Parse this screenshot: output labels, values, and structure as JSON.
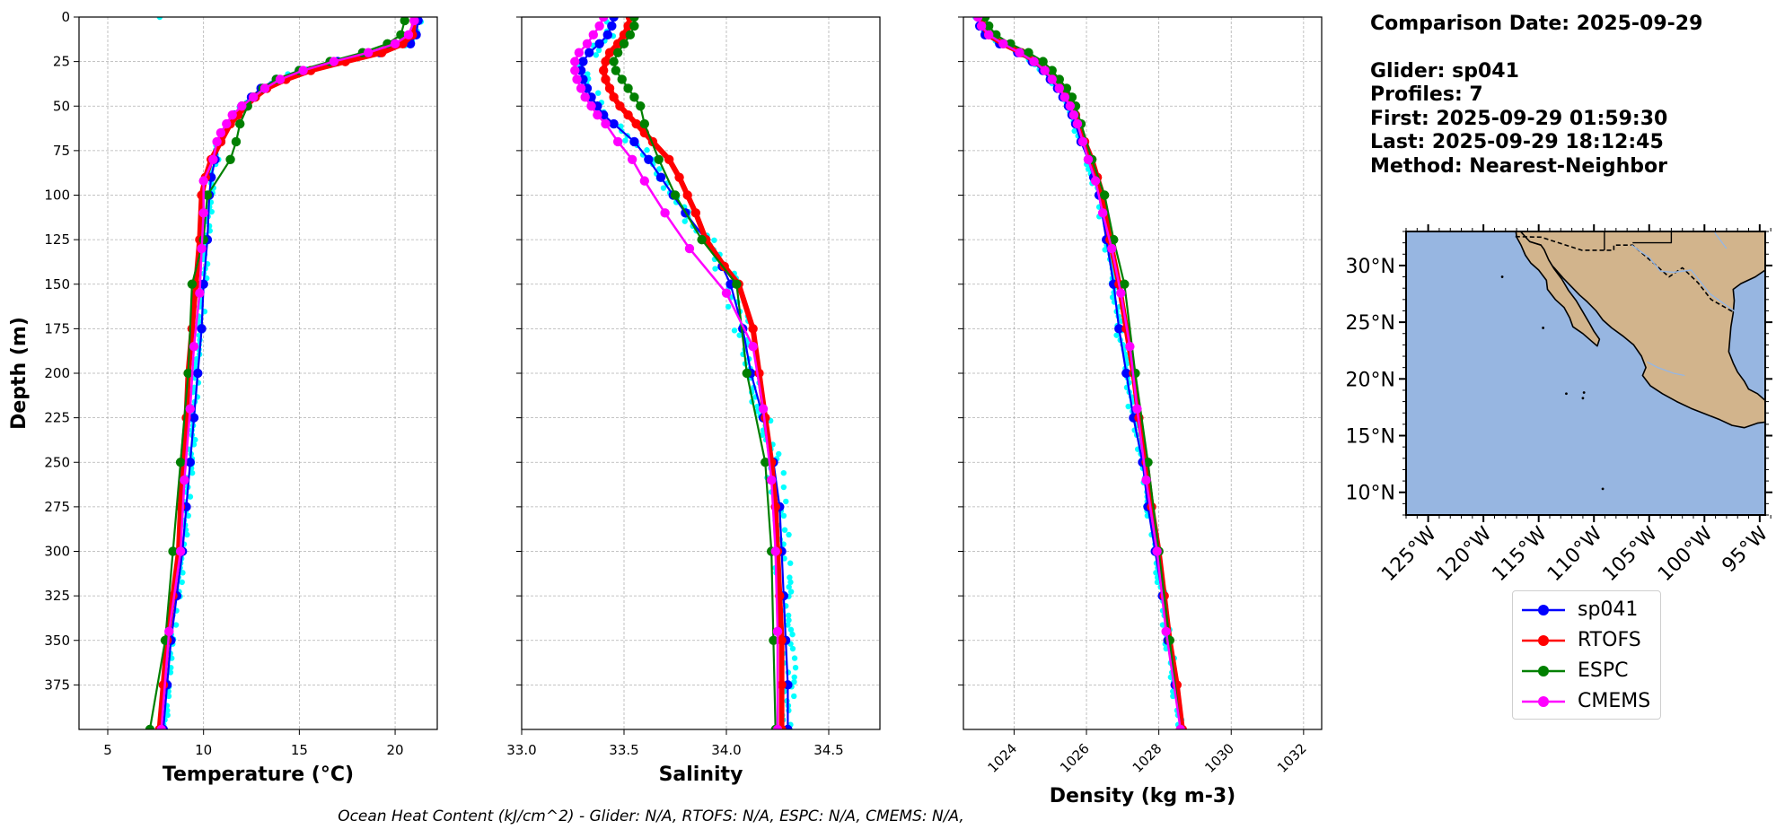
{
  "info": {
    "comparison_date": "Comparison Date: 2025-09-29",
    "glider": "Glider: sp041",
    "profiles": "Profiles: 7",
    "first": "First: 2025-09-29 01:59:30",
    "last": "Last: 2025-09-29 18:12:45",
    "method": "Method: Nearest-Neighbor"
  },
  "footer": "Ocean Heat Content (kJ/cm^2) - Glider: N/A,  RTOFS: N/A,  ESPC: N/A,  CMEMS: N/A,",
  "colors": {
    "sp041": "#0000ff",
    "RTOFS": "#ff0000",
    "ESPC": "#008000",
    "CMEMS": "#ff00ff",
    "sp041_scatter": "#00ffff",
    "land": "#d2b48c",
    "ocean": "#97b6e1",
    "grid": "#b0b0b0"
  },
  "legend": [
    {
      "name": "sp041",
      "color": "#0000ff"
    },
    {
      "name": "RTOFS",
      "color": "#ff0000"
    },
    {
      "name": "ESPC",
      "color": "#008000"
    },
    {
      "name": "CMEMS",
      "color": "#ff00ff"
    }
  ],
  "chart_data": [
    {
      "type": "line",
      "xlabel": "Temperature (°C)",
      "ylabel": "Depth (m)",
      "xlim": [
        3.5,
        22.2
      ],
      "ylim": [
        400,
        0
      ],
      "y_inverted": true,
      "xticks": [
        "5",
        "10",
        "15",
        "20"
      ],
      "xtick_values": [
        5,
        10,
        15,
        20
      ],
      "yticks": [
        "0",
        "25",
        "50",
        "75",
        "100",
        "125",
        "150",
        "175",
        "200",
        "225",
        "250",
        "275",
        "300",
        "325",
        "350",
        "375"
      ],
      "ytick_values": [
        0,
        25,
        50,
        75,
        100,
        125,
        150,
        175,
        200,
        225,
        250,
        275,
        300,
        325,
        350,
        375
      ],
      "grid": true,
      "series": [
        {
          "name": "sp041",
          "depth": [
            2,
            10,
            15,
            20,
            25,
            30,
            35,
            40,
            45,
            50,
            55,
            60,
            70,
            80,
            90,
            100,
            125,
            150,
            175,
            200,
            225,
            250,
            275,
            300,
            325,
            350,
            375,
            400
          ],
          "values": [
            21.2,
            21.1,
            20.8,
            19.2,
            17.0,
            15.0,
            13.8,
            13.0,
            12.5,
            12.0,
            11.6,
            11.3,
            10.9,
            10.6,
            10.4,
            10.3,
            10.2,
            10.0,
            9.9,
            9.7,
            9.5,
            9.3,
            9.1,
            8.9,
            8.6,
            8.3,
            8.1,
            7.9
          ]
        },
        {
          "name": "RTOFS",
          "depth": [
            2,
            10,
            15,
            20,
            25,
            30,
            35,
            40,
            45,
            50,
            55,
            60,
            70,
            80,
            90,
            100,
            125,
            150,
            175,
            200,
            225,
            250,
            275,
            300,
            325,
            350,
            375,
            400
          ],
          "values": [
            21.0,
            20.9,
            20.4,
            19.3,
            17.4,
            15.6,
            14.3,
            13.3,
            12.7,
            12.2,
            11.8,
            11.4,
            10.9,
            10.4,
            10.1,
            9.9,
            9.8,
            9.6,
            9.4,
            9.2,
            9.1,
            8.9,
            8.8,
            8.7,
            8.4,
            8.1,
            7.9,
            7.7
          ]
        },
        {
          "name": "ESPC",
          "depth": [
            2,
            10,
            15,
            20,
            25,
            30,
            35,
            40,
            45,
            50,
            60,
            70,
            80,
            100,
            125,
            150,
            200,
            250,
            300,
            350,
            400
          ],
          "values": [
            20.5,
            20.3,
            19.6,
            18.3,
            16.6,
            15.0,
            13.8,
            13.1,
            12.6,
            12.3,
            11.9,
            11.7,
            11.4,
            10.2,
            10.0,
            9.4,
            9.2,
            8.8,
            8.4,
            8.0,
            7.2
          ]
        },
        {
          "name": "CMEMS",
          "depth": [
            2,
            10,
            15,
            20,
            25,
            30,
            35,
            40,
            45,
            50,
            55,
            60,
            65,
            70,
            80,
            92,
            110,
            130,
            155,
            185,
            220,
            260,
            300,
            345,
            400
          ],
          "values": [
            21.0,
            20.7,
            20.0,
            18.6,
            16.8,
            15.2,
            14.0,
            13.2,
            12.6,
            12.0,
            11.5,
            11.2,
            10.9,
            10.7,
            10.5,
            10.0,
            10.0,
            9.9,
            9.8,
            9.5,
            9.3,
            9.0,
            8.8,
            8.2,
            7.8
          ]
        }
      ]
    },
    {
      "type": "line",
      "xlabel": "Salinity",
      "ylabel": "",
      "xlim": [
        33.0,
        34.75
      ],
      "ylim": [
        400,
        0
      ],
      "y_inverted": true,
      "xticks": [
        "33.0",
        "33.5",
        "34.0",
        "34.5"
      ],
      "xtick_values": [
        33.0,
        33.5,
        34.0,
        34.5
      ],
      "grid": true,
      "series": [
        {
          "name": "sp041",
          "depth": [
            0,
            5,
            10,
            15,
            20,
            25,
            30,
            35,
            40,
            45,
            50,
            55,
            60,
            70,
            80,
            90,
            100,
            110,
            125,
            140,
            150,
            175,
            200,
            225,
            250,
            275,
            300,
            325,
            350,
            375,
            400
          ],
          "values": [
            33.45,
            33.44,
            33.42,
            33.38,
            33.33,
            33.3,
            33.29,
            33.3,
            33.32,
            33.34,
            33.37,
            33.4,
            33.45,
            33.55,
            33.62,
            33.68,
            33.74,
            33.8,
            33.9,
            33.98,
            34.02,
            34.08,
            34.12,
            34.18,
            34.23,
            34.26,
            34.27,
            34.28,
            34.29,
            34.3,
            34.3
          ]
        },
        {
          "name": "RTOFS",
          "depth": [
            0,
            5,
            10,
            15,
            20,
            25,
            30,
            35,
            40,
            45,
            50,
            55,
            60,
            65,
            70,
            80,
            90,
            100,
            110,
            125,
            140,
            150,
            175,
            200,
            225,
            250,
            275,
            300,
            325,
            350,
            375,
            400
          ],
          "values": [
            33.53,
            33.52,
            33.5,
            33.47,
            33.43,
            33.41,
            33.4,
            33.41,
            33.43,
            33.45,
            33.48,
            33.52,
            33.56,
            33.6,
            33.64,
            33.72,
            33.77,
            33.81,
            33.85,
            33.9,
            33.99,
            34.06,
            34.13,
            34.16,
            34.19,
            34.22,
            34.24,
            34.25,
            34.26,
            34.27,
            34.27,
            34.27
          ]
        },
        {
          "name": "ESPC",
          "depth": [
            0,
            5,
            10,
            15,
            20,
            25,
            30,
            35,
            40,
            45,
            50,
            60,
            80,
            100,
            125,
            150,
            200,
            250,
            300,
            350,
            400
          ],
          "values": [
            33.55,
            33.55,
            33.53,
            33.5,
            33.47,
            33.45,
            33.46,
            33.49,
            33.52,
            33.55,
            33.58,
            33.6,
            33.67,
            33.75,
            33.88,
            34.05,
            34.1,
            34.19,
            34.22,
            34.23,
            34.24
          ]
        },
        {
          "name": "CMEMS",
          "depth": [
            0,
            5,
            10,
            15,
            20,
            25,
            30,
            35,
            40,
            45,
            50,
            55,
            60,
            70,
            80,
            92,
            110,
            130,
            155,
            185,
            220,
            260,
            300,
            345,
            400
          ],
          "values": [
            33.4,
            33.38,
            33.35,
            33.32,
            33.28,
            33.26,
            33.26,
            33.27,
            33.29,
            33.31,
            33.34,
            33.37,
            33.41,
            33.47,
            33.54,
            33.6,
            33.7,
            33.82,
            34.0,
            34.13,
            34.18,
            34.22,
            34.24,
            34.25,
            34.25
          ]
        }
      ]
    },
    {
      "type": "line",
      "xlabel": "Density (kg m-3)",
      "ylabel": "",
      "xlim": [
        1022.6,
        1032.5
      ],
      "ylim": [
        400,
        0
      ],
      "y_inverted": true,
      "xticks": [
        "1024",
        "1026",
        "1028",
        "1030",
        "1032"
      ],
      "xtick_values": [
        1024,
        1026,
        1028,
        1030,
        1032
      ],
      "grid": true,
      "series": [
        {
          "name": "sp041",
          "depth": [
            0,
            5,
            10,
            15,
            20,
            25,
            30,
            35,
            40,
            45,
            50,
            55,
            60,
            70,
            80,
            90,
            100,
            125,
            150,
            175,
            200,
            225,
            250,
            275,
            300,
            325,
            350,
            375,
            400
          ],
          "values": [
            1023.0,
            1023.05,
            1023.2,
            1023.6,
            1024.1,
            1024.5,
            1024.8,
            1025.0,
            1025.2,
            1025.35,
            1025.5,
            1025.6,
            1025.7,
            1025.85,
            1026.05,
            1026.2,
            1026.35,
            1026.55,
            1026.75,
            1026.9,
            1027.1,
            1027.3,
            1027.55,
            1027.7,
            1027.9,
            1028.1,
            1028.25,
            1028.45,
            1028.6
          ]
        },
        {
          "name": "RTOFS",
          "depth": [
            0,
            5,
            10,
            15,
            20,
            25,
            30,
            35,
            40,
            45,
            50,
            55,
            60,
            70,
            80,
            90,
            100,
            125,
            150,
            175,
            200,
            225,
            250,
            275,
            300,
            325,
            350,
            375,
            400
          ],
          "values": [
            1023.1,
            1023.15,
            1023.3,
            1023.7,
            1024.2,
            1024.6,
            1024.9,
            1025.1,
            1025.3,
            1025.45,
            1025.6,
            1025.7,
            1025.8,
            1025.95,
            1026.15,
            1026.3,
            1026.45,
            1026.65,
            1026.9,
            1027.1,
            1027.3,
            1027.45,
            1027.65,
            1027.8,
            1028.0,
            1028.15,
            1028.3,
            1028.5,
            1028.65
          ]
        },
        {
          "name": "ESPC",
          "depth": [
            0,
            5,
            10,
            15,
            20,
            25,
            30,
            35,
            40,
            45,
            50,
            60,
            80,
            100,
            125,
            150,
            200,
            250,
            300,
            350,
            400
          ],
          "values": [
            1023.2,
            1023.3,
            1023.5,
            1023.9,
            1024.4,
            1024.8,
            1025.05,
            1025.25,
            1025.45,
            1025.6,
            1025.7,
            1025.85,
            1026.15,
            1026.5,
            1026.75,
            1027.05,
            1027.35,
            1027.7,
            1028.0,
            1028.3,
            1028.6
          ]
        },
        {
          "name": "CMEMS",
          "depth": [
            0,
            5,
            10,
            15,
            20,
            25,
            30,
            35,
            40,
            45,
            50,
            55,
            60,
            70,
            80,
            92,
            110,
            130,
            155,
            185,
            220,
            260,
            300,
            345,
            400
          ],
          "values": [
            1023.0,
            1023.1,
            1023.3,
            1023.7,
            1024.15,
            1024.55,
            1024.85,
            1025.05,
            1025.25,
            1025.4,
            1025.55,
            1025.65,
            1025.75,
            1025.9,
            1026.05,
            1026.25,
            1026.45,
            1026.7,
            1026.95,
            1027.2,
            1027.4,
            1027.65,
            1027.95,
            1028.2,
            1028.6
          ]
        }
      ]
    },
    {
      "type": "map",
      "lon_range": [
        -127.0,
        -94.5
      ],
      "lat_range": [
        8.0,
        33.0
      ],
      "lon_ticks": [
        "125°W",
        "120°W",
        "115°W",
        "110°W",
        "105°W",
        "100°W",
        "95°W"
      ],
      "lon_tick_values": [
        -125,
        -120,
        -115,
        -110,
        -105,
        -100,
        -95
      ],
      "lat_ticks": [
        "30°N",
        "25°N",
        "20°N",
        "15°N",
        "10°N"
      ],
      "lat_tick_values": [
        30,
        25,
        20,
        15,
        10
      ]
    }
  ]
}
